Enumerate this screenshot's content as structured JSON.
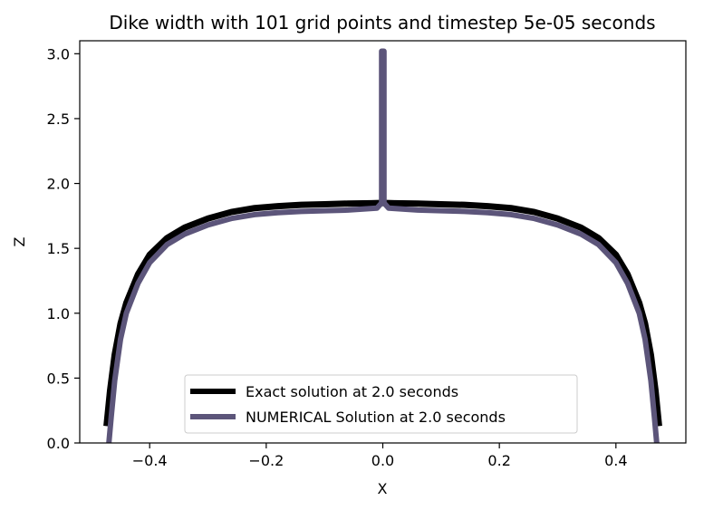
{
  "chart_data": {
    "type": "line",
    "title": "Dike width with 101 grid points and timestep 5e-05 seconds",
    "xlabel": "X",
    "ylabel": "Z",
    "xlim": [
      -0.52,
      0.52
    ],
    "ylim": [
      0.0,
      3.1
    ],
    "xticks": [
      -0.4,
      -0.2,
      0.0,
      0.2,
      0.4
    ],
    "xtick_labels": [
      "−0.4",
      "−0.2",
      "0.0",
      "0.2",
      "0.4"
    ],
    "yticks": [
      0.0,
      0.5,
      1.0,
      1.5,
      2.0,
      2.5,
      3.0
    ],
    "ytick_labels": [
      "0.0",
      "0.5",
      "1.0",
      "1.5",
      "2.0",
      "2.5",
      "3.0"
    ],
    "grid": false,
    "legend_position": "lower center",
    "series": [
      {
        "name": "Exact solution at 2.0 seconds",
        "color": "#000000",
        "x": [
          -0.474,
          -0.468,
          -0.46,
          -0.45,
          -0.44,
          -0.42,
          -0.4,
          -0.37,
          -0.34,
          -0.3,
          -0.26,
          -0.22,
          -0.18,
          -0.14,
          -0.1,
          -0.06,
          -0.02,
          0.0,
          0.02,
          0.06,
          0.1,
          0.14,
          0.18,
          0.22,
          0.26,
          0.3,
          0.34,
          0.37,
          0.4,
          0.42,
          0.44,
          0.45,
          0.46,
          0.468,
          0.474
        ],
        "y": [
          0.13,
          0.4,
          0.68,
          0.92,
          1.08,
          1.3,
          1.45,
          1.58,
          1.66,
          1.73,
          1.78,
          1.81,
          1.825,
          1.835,
          1.84,
          1.845,
          1.848,
          1.85,
          1.848,
          1.845,
          1.84,
          1.835,
          1.825,
          1.81,
          1.78,
          1.73,
          1.66,
          1.58,
          1.45,
          1.3,
          1.08,
          0.92,
          0.68,
          0.4,
          0.13
        ]
      },
      {
        "name": "NUMERICAL Solution at 2.0 seconds",
        "color": "#5c557a",
        "x": [
          -0.47,
          -0.466,
          -0.46,
          -0.45,
          -0.44,
          -0.42,
          -0.4,
          -0.37,
          -0.34,
          -0.3,
          -0.26,
          -0.22,
          -0.18,
          -0.14,
          -0.1,
          -0.06,
          -0.01,
          -0.002,
          -0.002,
          0.002,
          0.002,
          0.01,
          0.06,
          0.1,
          0.14,
          0.18,
          0.22,
          0.26,
          0.3,
          0.34,
          0.37,
          0.4,
          0.42,
          0.44,
          0.45,
          0.46,
          0.466,
          0.47
        ],
        "y": [
          0.0,
          0.2,
          0.48,
          0.8,
          1.0,
          1.23,
          1.39,
          1.53,
          1.61,
          1.68,
          1.73,
          1.76,
          1.775,
          1.785,
          1.79,
          1.795,
          1.81,
          1.85,
          3.02,
          3.02,
          1.85,
          1.81,
          1.795,
          1.79,
          1.785,
          1.775,
          1.76,
          1.73,
          1.68,
          1.61,
          1.53,
          1.39,
          1.23,
          1.0,
          0.8,
          0.48,
          0.2,
          0.0
        ]
      }
    ]
  }
}
